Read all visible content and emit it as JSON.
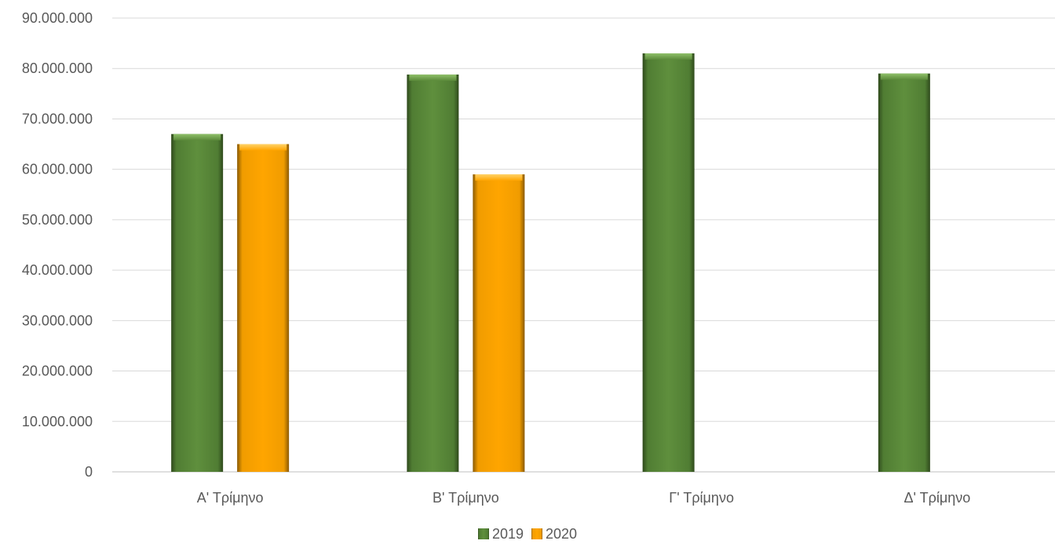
{
  "chart_data": {
    "type": "bar",
    "categories": [
      "Α' Τρίμηνο",
      "Β' Τρίμηνο",
      "Γ' Τρίμηνο",
      "Δ' Τρίμηνο"
    ],
    "series": [
      {
        "name": "2019",
        "color": "#5b8a3a",
        "values": [
          67000000,
          78800000,
          83000000,
          79000000
        ]
      },
      {
        "name": "2020",
        "color": "#ffa500",
        "values": [
          65000000,
          59000000,
          null,
          null
        ]
      }
    ],
    "ylim": [
      0,
      90000000
    ],
    "yticks": [
      0,
      10000000,
      20000000,
      30000000,
      40000000,
      50000000,
      60000000,
      70000000,
      80000000,
      90000000
    ],
    "ytick_labels": [
      "0",
      "10.000.000",
      "20.000.000",
      "30.000.000",
      "40.000.000",
      "50.000.000",
      "60.000.000",
      "70.000.000",
      "80.000.000",
      "90.000.000"
    ],
    "grid": true,
    "legend_position": "bottom",
    "title": "",
    "xlabel": "",
    "ylabel": ""
  }
}
